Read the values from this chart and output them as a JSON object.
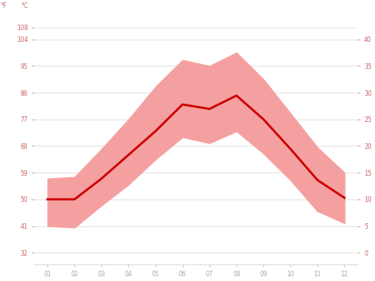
{
  "months": [
    1,
    2,
    3,
    4,
    5,
    6,
    7,
    8,
    9,
    10,
    11,
    12
  ],
  "avg_temp_f": [
    50.0,
    50.0,
    57.0,
    65.0,
    73.0,
    82.0,
    80.5,
    85.0,
    77.0,
    67.0,
    56.5,
    50.5
  ],
  "max_temp_f": [
    57.0,
    57.5,
    67.0,
    77.0,
    88.0,
    97.0,
    95.0,
    99.5,
    90.5,
    79.0,
    67.5,
    59.0
  ],
  "min_temp_f": [
    41.0,
    40.5,
    48.0,
    55.0,
    63.5,
    71.0,
    69.0,
    73.0,
    65.5,
    56.5,
    46.0,
    42.0
  ],
  "line_color": "#cc0000",
  "band_color": "#f5a0a0",
  "grid_color": "#d8d8d8",
  "background_color": "#ffffff",
  "yticks_f": [
    32,
    41,
    50,
    59,
    68,
    77,
    86,
    95,
    104,
    108
  ],
  "yticks_c": [
    0,
    5,
    10,
    15,
    20,
    25,
    30,
    35,
    40
  ],
  "ylim_f": [
    28,
    112
  ],
  "xlim": [
    0.5,
    12.5
  ],
  "xlabel_months": [
    "01",
    "02",
    "03",
    "04",
    "05",
    "06",
    "07",
    "08",
    "09",
    "10",
    "11",
    "12"
  ],
  "tick_label_color": "#cc6666",
  "axis_label_f": "°F",
  "axis_label_c": "°C"
}
